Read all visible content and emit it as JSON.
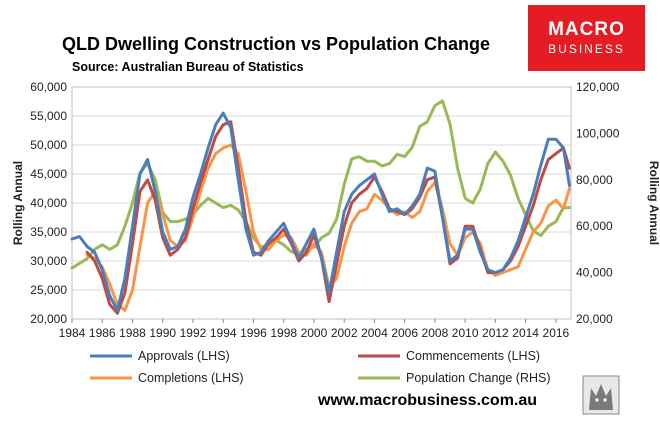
{
  "title": "QLD Dwelling Construction vs Population Change",
  "subtitle": "Source: Australian Bureau of Statistics",
  "footer": "www.macrobusiness.com.au",
  "logo": {
    "line1": "MACRO",
    "line2": "BUSINESS",
    "color": "#e31d23"
  },
  "badge_icon": "wolf-icon",
  "colors": {
    "approvals": "#4a7ebb",
    "commencements": "#be4b48",
    "completions": "#f79646",
    "population": "#98b954",
    "grid": "#d9d9d9"
  },
  "chart_data": {
    "type": "line",
    "title": "QLD Dwelling Construction vs Population Change",
    "ylabel": "Rolling Annual",
    "y2label": "Rolling Annual",
    "ylim": [
      20000,
      60000
    ],
    "y2lim": [
      20000,
      120000
    ],
    "xlim": [
      1984,
      2017
    ],
    "yticks": [
      "20,000",
      "25,000",
      "30,000",
      "35,000",
      "40,000",
      "45,000",
      "50,000",
      "55,000",
      "60,000"
    ],
    "y2ticks": [
      "20,000",
      "40,000",
      "60,000",
      "80,000",
      "100,000",
      "120,000"
    ],
    "xticks": [
      "1984",
      "1986",
      "1988",
      "1990",
      "1992",
      "1994",
      "1996",
      "1998",
      "2000",
      "2002",
      "2004",
      "2006",
      "2008",
      "2010",
      "2012",
      "2014",
      "2016"
    ],
    "grid": true,
    "legend_position": "bottom",
    "series": [
      {
        "name": "Approvals (LHS)",
        "axis": "left",
        "x": [
          1984,
          1984.5,
          1985,
          1985.5,
          1986,
          1986.5,
          1987,
          1987.5,
          1988,
          1988.5,
          1989,
          1989.5,
          1990,
          1990.5,
          1991,
          1991.5,
          1992,
          1992.5,
          1993,
          1993.5,
          1994,
          1994.5,
          1995,
          1995.5,
          1996,
          1996.5,
          1997,
          1997.5,
          1998,
          1998.5,
          1999,
          1999.5,
          2000,
          2000.5,
          2001,
          2001.5,
          2002,
          2002.5,
          2003,
          2003.5,
          2004,
          2004.5,
          2005,
          2005.5,
          2006,
          2006.5,
          2007,
          2007.5,
          2008,
          2008.5,
          2009,
          2009.5,
          2010,
          2010.5,
          2011,
          2011.5,
          2012,
          2012.5,
          2013,
          2013.5,
          2014,
          2014.5,
          2015,
          2015.5,
          2016,
          2016.5,
          2016.9
        ],
        "y": [
          33800,
          34200,
          32500,
          31500,
          28500,
          24000,
          21500,
          27000,
          36000,
          45000,
          47500,
          42000,
          35000,
          32000,
          32500,
          35500,
          41000,
          45000,
          49500,
          53500,
          55500,
          53000,
          44000,
          35500,
          31000,
          31500,
          33500,
          35000,
          36500,
          33500,
          30500,
          33000,
          35500,
          30500,
          24500,
          31500,
          38500,
          41500,
          43000,
          44000,
          45000,
          41500,
          38500,
          39000,
          38000,
          39500,
          41500,
          46000,
          45500,
          37500,
          30000,
          31000,
          35500,
          35500,
          31500,
          28500,
          28000,
          28500,
          30500,
          33500,
          37500,
          41500,
          46500,
          51000,
          51000,
          49500,
          43000
        ]
      },
      {
        "name": "Commencements (LHS)",
        "axis": "left",
        "x": [
          1984,
          1984.5,
          1985,
          1985.5,
          1986,
          1986.5,
          1987,
          1987.5,
          1988,
          1988.5,
          1989,
          1989.5,
          1990,
          1990.5,
          1991,
          1991.5,
          1992,
          1992.5,
          1993,
          1993.5,
          1994,
          1994.5,
          1995,
          1995.5,
          1996,
          1996.5,
          1997,
          1997.5,
          1998,
          1998.5,
          1999,
          1999.5,
          2000,
          2000.5,
          2001,
          2001.5,
          2002,
          2002.5,
          2003,
          2003.5,
          2004,
          2004.5,
          2005,
          2005.5,
          2006,
          2006.5,
          2007,
          2007.5,
          2008,
          2008.5,
          2009,
          2009.5,
          2010,
          2010.5,
          2011,
          2011.5,
          2012,
          2012.5,
          2013,
          2013.5,
          2014,
          2014.5,
          2015,
          2015.5,
          2016,
          2016.5,
          2016.9
        ],
        "y": [
          null,
          null,
          31500,
          30000,
          27000,
          22500,
          21000,
          24500,
          33000,
          42000,
          44000,
          40500,
          34000,
          31000,
          32000,
          34000,
          39000,
          43500,
          47500,
          51500,
          53500,
          54000,
          46000,
          37000,
          31500,
          31000,
          33000,
          34000,
          35500,
          33000,
          30000,
          31500,
          34500,
          30500,
          23000,
          29500,
          36000,
          40000,
          41500,
          42500,
          44500,
          42000,
          39000,
          38500,
          38000,
          39000,
          41000,
          44000,
          44500,
          37500,
          29500,
          30500,
          36000,
          36000,
          32000,
          28000,
          28000,
          28500,
          30000,
          32500,
          36000,
          39500,
          44000,
          47500,
          48500,
          49500,
          46000
        ]
      },
      {
        "name": "Completions (LHS)",
        "axis": "left",
        "x": [
          1984,
          1984.5,
          1985,
          1985.5,
          1986,
          1986.5,
          1987,
          1987.5,
          1988,
          1988.5,
          1989,
          1989.5,
          1990,
          1990.5,
          1991,
          1991.5,
          1992,
          1992.5,
          1993,
          1993.5,
          1994,
          1994.5,
          1995,
          1995.5,
          1996,
          1996.5,
          1997,
          1997.5,
          1998,
          1998.5,
          1999,
          1999.5,
          2000,
          2000.5,
          2001,
          2001.5,
          2002,
          2002.5,
          2003,
          2003.5,
          2004,
          2004.5,
          2005,
          2005.5,
          2006,
          2006.5,
          2007,
          2007.5,
          2008,
          2008.5,
          2009,
          2009.5,
          2010,
          2010.5,
          2011,
          2011.5,
          2012,
          2012.5,
          2013,
          2013.5,
          2014,
          2014.5,
          2015,
          2015.5,
          2016,
          2016.5,
          2016.9
        ],
        "y": [
          null,
          null,
          31000,
          30500,
          29000,
          26000,
          22500,
          21500,
          25000,
          32500,
          40000,
          42000,
          38000,
          33500,
          32500,
          33500,
          37500,
          42000,
          46000,
          48500,
          49500,
          50000,
          48500,
          42000,
          35000,
          32000,
          32000,
          33500,
          34500,
          34000,
          31500,
          31000,
          33000,
          31500,
          25500,
          27000,
          32500,
          36500,
          38500,
          39000,
          41500,
          40500,
          39000,
          38000,
          38500,
          37500,
          38500,
          42000,
          43500,
          39000,
          33000,
          31000,
          34000,
          35000,
          33000,
          28500,
          27500,
          28000,
          28500,
          29000,
          32000,
          35000,
          36500,
          39500,
          40500,
          39000,
          42500
        ]
      },
      {
        "name": "Population Change (RHS)",
        "axis": "right",
        "x": [
          1984,
          1984.5,
          1985,
          1985.5,
          1986,
          1986.5,
          1987,
          1987.5,
          1988,
          1988.5,
          1989,
          1989.5,
          1990,
          1990.5,
          1991,
          1991.5,
          1992,
          1992.5,
          1993,
          1993.5,
          1994,
          1994.5,
          1995,
          1995.5,
          1996,
          1996.5,
          1997,
          1997.5,
          1998,
          1998.5,
          1999,
          1999.5,
          2000,
          2000.5,
          2001,
          2001.5,
          2002,
          2002.5,
          2003,
          2003.5,
          2004,
          2004.5,
          2005,
          2005.5,
          2006,
          2006.5,
          2007,
          2007.5,
          2008,
          2008.5,
          2009,
          2009.5,
          2010,
          2010.5,
          2011,
          2011.5,
          2012,
          2012.5,
          2013,
          2013.5,
          2014,
          2014.5,
          2015,
          2015.5,
          2016,
          2016.5,
          2016.9
        ],
        "y": [
          42000,
          44000,
          46000,
          50000,
          52000,
          50000,
          52000,
          60000,
          70000,
          83000,
          87000,
          80000,
          66000,
          62000,
          62000,
          63000,
          65000,
          69000,
          72000,
          70000,
          68000,
          69000,
          67000,
          62000,
          55000,
          51000,
          52000,
          54000,
          52000,
          49000,
          48000,
          50000,
          51000,
          55000,
          57000,
          63000,
          78000,
          89000,
          90000,
          88000,
          88000,
          86000,
          87000,
          91000,
          90000,
          94000,
          103000,
          105000,
          112000,
          114000,
          104000,
          85000,
          72000,
          70000,
          76000,
          87000,
          92000,
          88000,
          82000,
          72000,
          65000,
          58000,
          56000,
          60000,
          62000,
          68000,
          68000
        ]
      }
    ]
  }
}
